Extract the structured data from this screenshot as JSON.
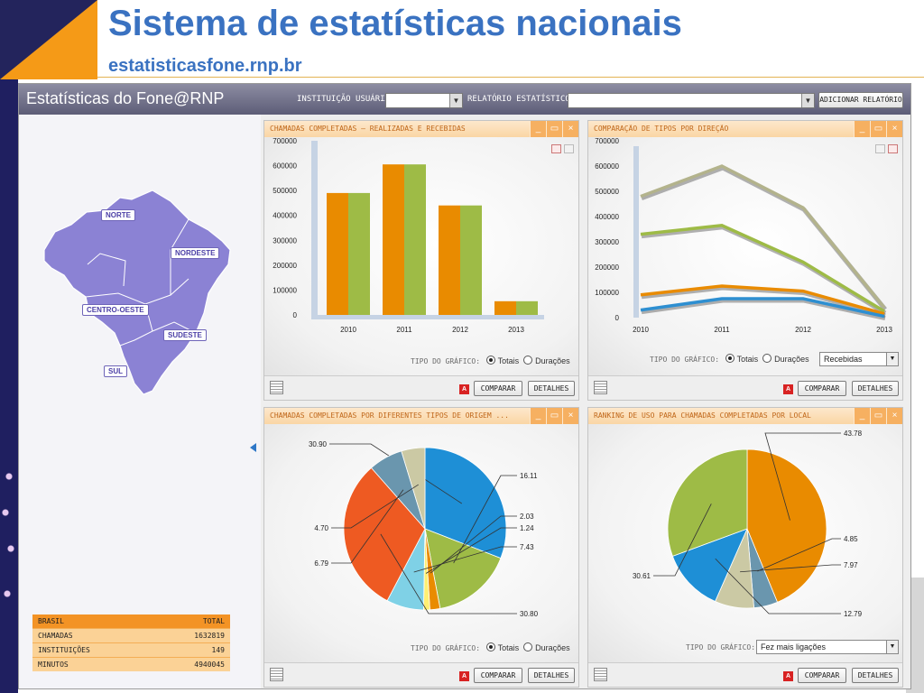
{
  "slide": {
    "title": "Sistema de estatísticas nacionais",
    "subtitle": "estatisticasfone.rnp.br"
  },
  "app": {
    "title": "Estatísticas do Fone@RNP",
    "instituicao_label": "INSTITUIÇÃO USUÁRIA",
    "instituicao_value": "",
    "relatorio_label": "RELATÓRIO ESTATÍSTICO",
    "relatorio_value": "",
    "add_button": "ADICIONAR RELATÓRIO",
    "colors": {
      "accent": "#e98b00",
      "green": "#9ebb46",
      "header": "#6e6e88"
    }
  },
  "map": {
    "regions": [
      "NORTE",
      "NORDESTE",
      "CENTRO-OESTE",
      "SUDESTE",
      "SUL"
    ]
  },
  "summary_table": {
    "headers": [
      "BRASIL",
      "TOTAL"
    ],
    "rows": [
      [
        "CHAMADAS",
        "1632819"
      ],
      [
        "INSTITUIÇÕES",
        "149"
      ],
      [
        "MINUTOS",
        "4940045"
      ]
    ]
  },
  "common": {
    "tipo_label": "TIPO DO GRÁFICO:",
    "totais": "Totais",
    "duracoes": "Durações",
    "comparar": "COMPARAR",
    "detalhes": "DETALHES",
    "min": "_",
    "max": "▭",
    "close": "×"
  },
  "panels": {
    "p1": {
      "title": "CHAMADAS COMPLETADAS – REALIZADAS E RECEBIDAS",
      "selected": "Totais"
    },
    "p2": {
      "title": "COMPARAÇÃO DE TIPOS POR DIREÇÃO",
      "selected": "Totais",
      "dropdown": "Recebidas"
    },
    "p3": {
      "title": "CHAMADAS COMPLETADAS POR DIFERENTES TIPOS DE ORIGEM ...",
      "selected": "Totais"
    },
    "p4": {
      "title": "RANKING DE USO PARA CHAMADAS COMPLETADAS POR LOCAL",
      "tipo_dropdown": "Fez mais ligações"
    }
  },
  "chart_data": [
    {
      "type": "bar",
      "categories": [
        "2010",
        "2011",
        "2012",
        "2013"
      ],
      "ylim": [
        0,
        700000
      ],
      "yticks": [
        "0",
        "100000",
        "200000",
        "300000",
        "400000",
        "500000",
        "600000",
        "700000"
      ],
      "series": [
        {
          "values": [
            490000,
            605000,
            440000,
            55000
          ],
          "color": "#e98b00"
        },
        {
          "values": [
            490000,
            605000,
            440000,
            55000
          ],
          "color": "#9ebb46"
        }
      ]
    },
    {
      "type": "line",
      "x": [
        "2010",
        "2011",
        "2012",
        "2013"
      ],
      "ylim": [
        0,
        700000
      ],
      "yticks": [
        "0",
        "100000",
        "200000",
        "300000",
        "400000",
        "500000",
        "600000",
        "700000"
      ],
      "series": [
        {
          "values": [
            480000,
            600000,
            435000,
            40000
          ],
          "color": "#b3b38c"
        },
        {
          "values": [
            330000,
            365000,
            220000,
            25000
          ],
          "color": "#9ebb46"
        },
        {
          "values": [
            90000,
            125000,
            105000,
            15000
          ],
          "color": "#e98b00"
        },
        {
          "values": [
            30000,
            75000,
            75000,
            5000
          ],
          "color": "#2e8fd1"
        }
      ]
    },
    {
      "type": "pie",
      "slices": [
        {
          "label": "30.90",
          "value": 30.9,
          "color": "#1e8fd6"
        },
        {
          "label": "16.11",
          "value": 16.11,
          "color": "#9ebb46"
        },
        {
          "label": "2.03",
          "value": 2.03,
          "color": "#e98b00"
        },
        {
          "label": "1.24",
          "value": 1.24,
          "color": "#ffef72"
        },
        {
          "label": "7.43",
          "value": 7.43,
          "color": "#7fd1e6"
        },
        {
          "label": "30.80",
          "value": 30.8,
          "color": "#ee5a22"
        },
        {
          "label": "6.79",
          "value": 6.79,
          "color": "#6a96ae"
        },
        {
          "label": "4.70",
          "value": 4.7,
          "color": "#cbc9a4"
        }
      ]
    },
    {
      "type": "pie",
      "slices": [
        {
          "label": "43.78",
          "value": 43.78,
          "color": "#e98b00"
        },
        {
          "label": "4.85",
          "value": 4.85,
          "color": "#6a96ae"
        },
        {
          "label": "7.97",
          "value": 7.97,
          "color": "#cbc9a4"
        },
        {
          "label": "12.79",
          "value": 12.79,
          "color": "#1e8fd6"
        },
        {
          "label": "30.61",
          "value": 30.61,
          "color": "#9ebb46"
        }
      ]
    }
  ]
}
